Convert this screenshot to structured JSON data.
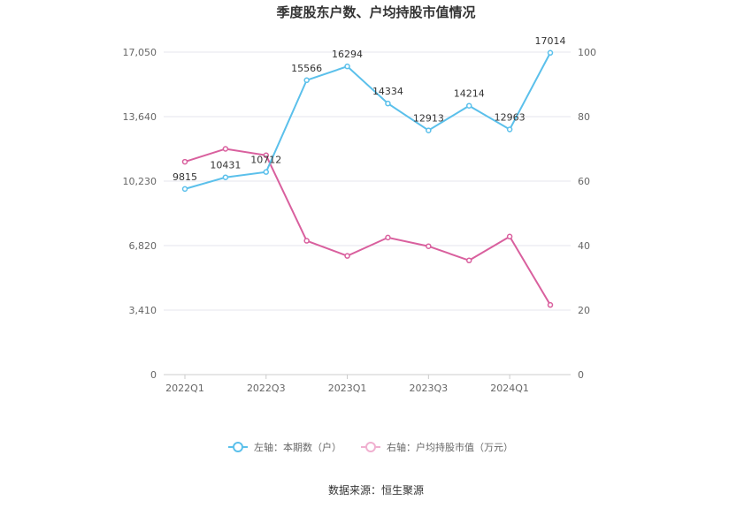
{
  "chart_data": {
    "type": "line",
    "title": "季度股东户数、户均持股市值情况",
    "categories": [
      "2022Q1",
      "2022Q2",
      "2022Q3",
      "2022Q4",
      "2023Q1",
      "2023Q2",
      "2023Q3",
      "2023Q4",
      "2024Q1",
      "2024Q2"
    ],
    "x_tick_labels": [
      "2022Q1",
      "2022Q3",
      "2023Q1",
      "2023Q3",
      "2024Q1"
    ],
    "left_axis": {
      "min": 0,
      "max": 17050,
      "ticks": [
        "0",
        "3,410",
        "6,820",
        "10,230",
        "13,640",
        "17,050"
      ]
    },
    "right_axis": {
      "min": 0,
      "max": 100,
      "ticks": [
        "0",
        "20",
        "40",
        "60",
        "80",
        "100"
      ]
    },
    "grid": true,
    "series": [
      {
        "name": "左轴：本期数（户）",
        "axis": "left",
        "color": "#5bc0eb",
        "values": [
          9815,
          10431,
          10712,
          15566,
          16294,
          14334,
          12913,
          14214,
          12963,
          17014
        ],
        "labels": [
          "9815",
          "10431",
          "10712",
          "15566",
          "16294",
          "14334",
          "12913",
          "14214",
          "12963",
          "17014"
        ]
      },
      {
        "name": "右轴：户均持股市值（万元）",
        "axis": "right",
        "color": "#d9609e",
        "values": [
          66.0,
          70.0,
          68.0,
          41.5,
          36.8,
          42.5,
          39.8,
          35.4,
          42.8,
          21.6
        ]
      }
    ],
    "legend_position": "bottom"
  },
  "footer": {
    "source": "数据来源：恒生聚源"
  }
}
